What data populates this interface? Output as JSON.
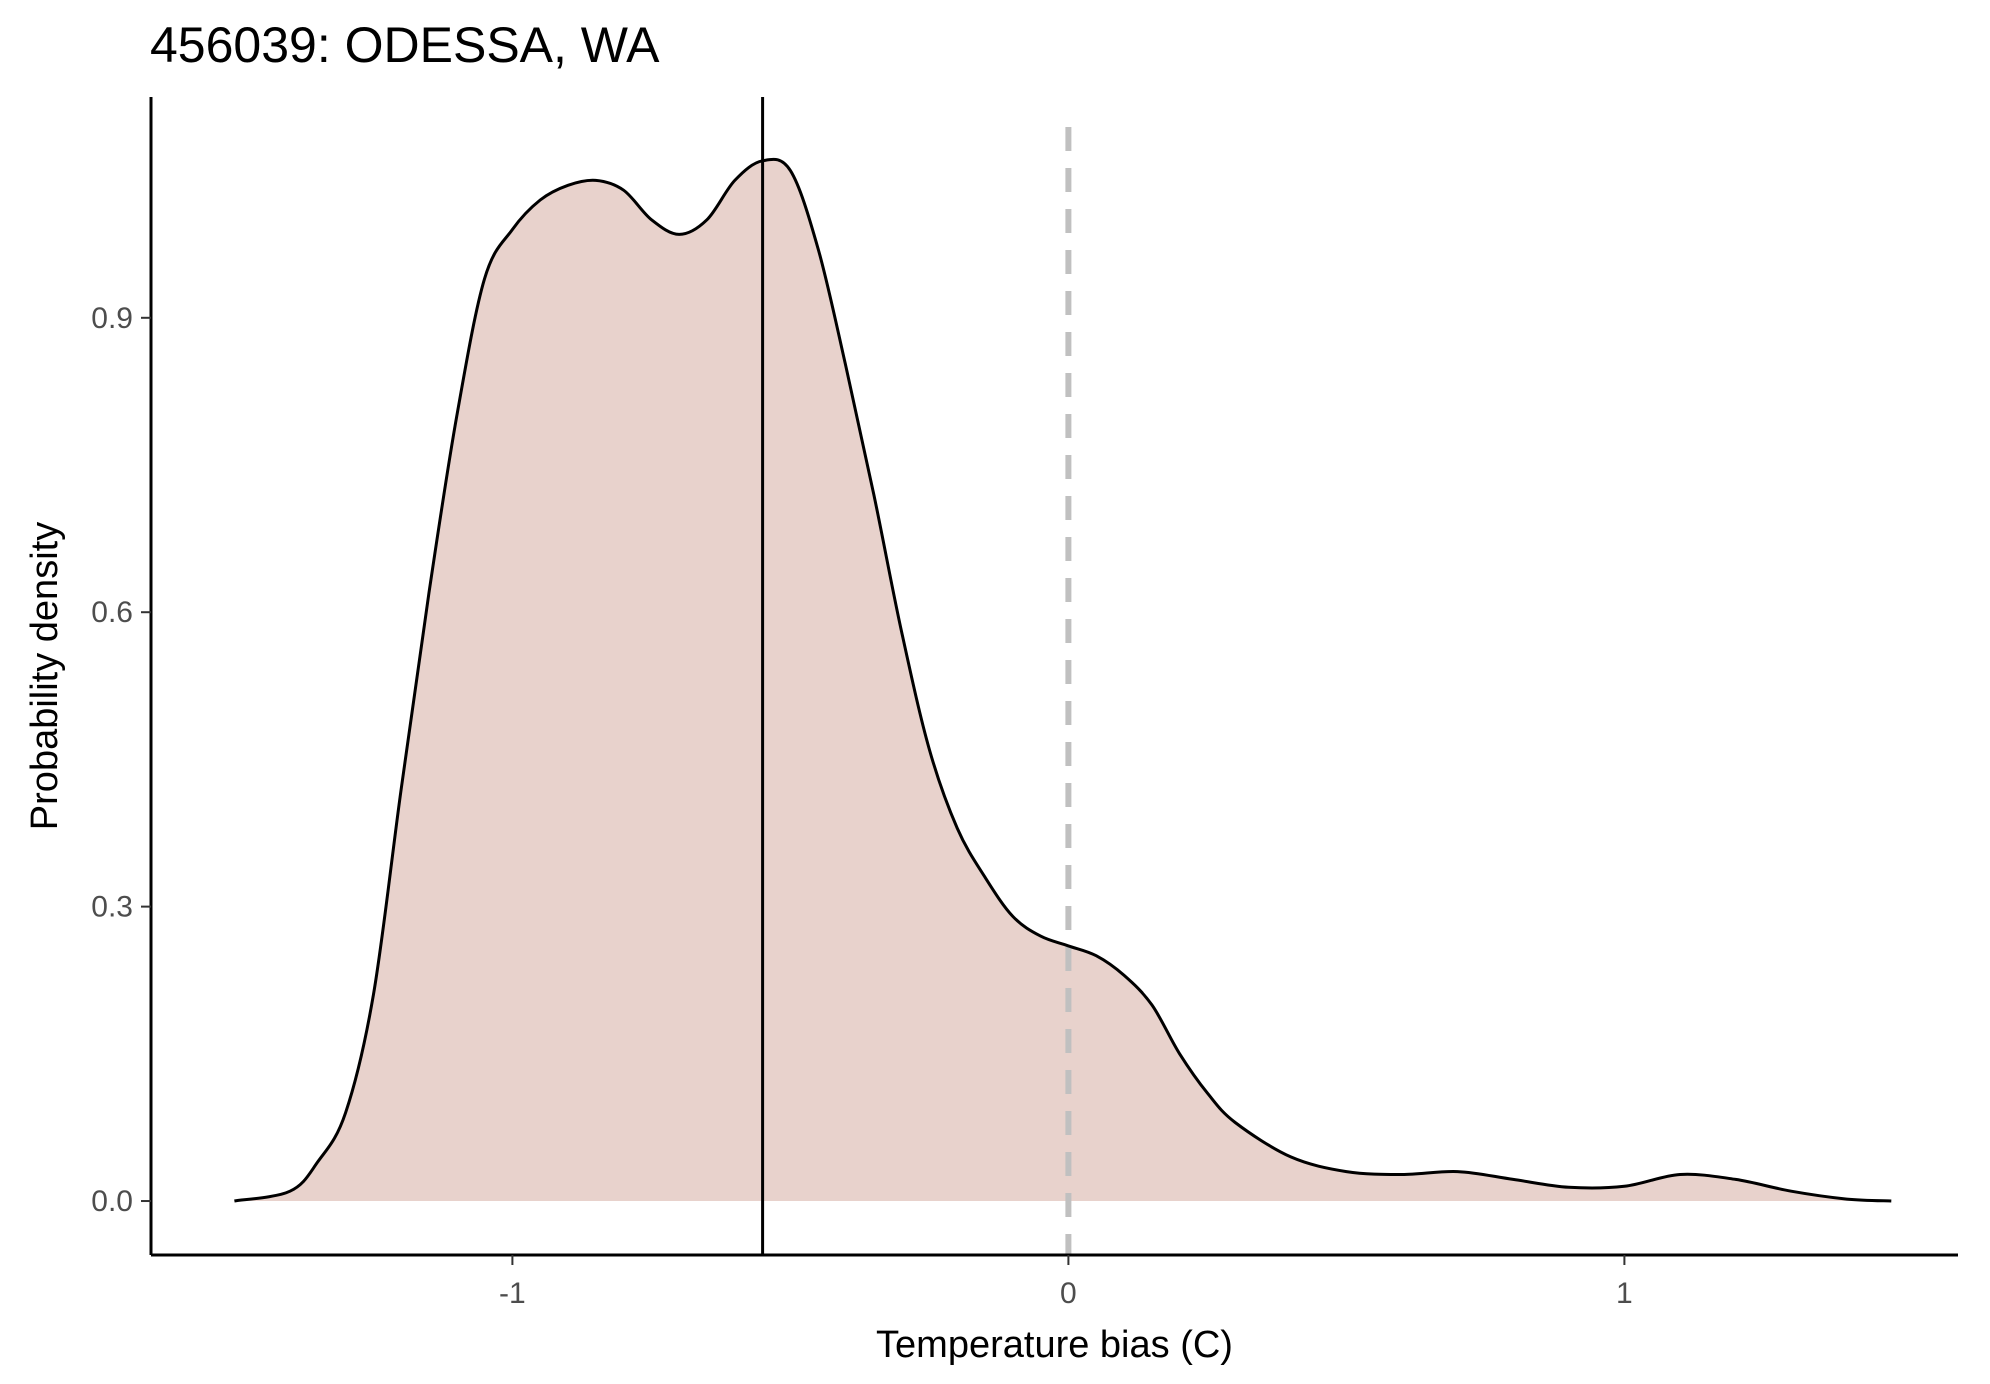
{
  "chart_data": {
    "type": "area",
    "title": "456039: ODESSA, WA",
    "xlabel": "Temperature bias (C)",
    "ylabel": "Probability density",
    "xlim": [
      -1.65,
      1.6
    ],
    "ylim": [
      -0.055,
      1.125
    ],
    "x_ticks": [
      -1,
      0,
      1
    ],
    "x_tick_labels": [
      "-1",
      "0",
      "1"
    ],
    "y_ticks": [
      0.0,
      0.3,
      0.6,
      0.9
    ],
    "y_tick_labels": [
      "0.0",
      "0.3",
      "0.6",
      "0.9"
    ],
    "grid": false,
    "legend": "none",
    "colors": {
      "fill": "#e8d2cc",
      "line": "#000000",
      "reference_line": "#c0c0c0",
      "axis": "#000000"
    },
    "series": [
      {
        "x": [
          -1.5,
          -1.4,
          -1.35,
          -1.3,
          -1.25,
          -1.2,
          -1.15,
          -1.1,
          -1.05,
          -1.0,
          -0.95,
          -0.9,
          -0.85,
          -0.8,
          -0.75,
          -0.7,
          -0.65,
          -0.6,
          -0.55,
          -0.5,
          -0.45,
          -0.4,
          -0.35,
          -0.3,
          -0.25,
          -0.2,
          -0.15,
          -0.1,
          -0.05,
          0.0,
          0.05,
          0.1,
          0.15,
          0.2,
          0.25,
          0.3,
          0.4,
          0.5,
          0.6,
          0.7,
          0.8,
          0.9,
          1.0,
          1.1,
          1.2,
          1.3,
          1.4,
          1.48
        ],
        "y": [
          0.0,
          0.01,
          0.04,
          0.09,
          0.21,
          0.42,
          0.62,
          0.8,
          0.94,
          0.99,
          1.02,
          1.035,
          1.04,
          1.03,
          1.0,
          0.985,
          1.0,
          1.04,
          1.06,
          1.05,
          0.97,
          0.85,
          0.72,
          0.58,
          0.46,
          0.38,
          0.33,
          0.29,
          0.27,
          0.26,
          0.25,
          0.23,
          0.2,
          0.15,
          0.11,
          0.08,
          0.045,
          0.03,
          0.027,
          0.03,
          0.022,
          0.014,
          0.015,
          0.027,
          0.022,
          0.01,
          0.002,
          0.0
        ]
      }
    ],
    "vlines": [
      {
        "x": -0.55,
        "style": "solid"
      },
      {
        "x": 0.0,
        "style": "dashed"
      }
    ]
  }
}
